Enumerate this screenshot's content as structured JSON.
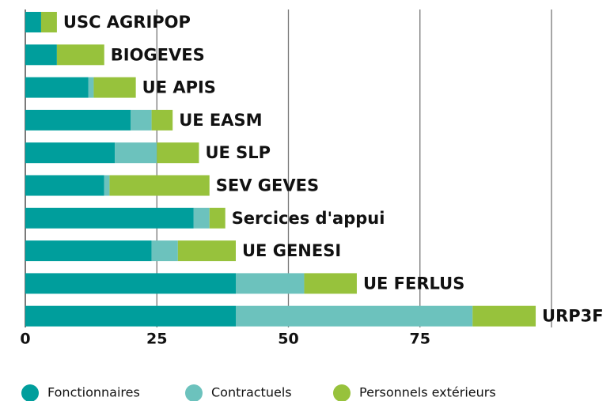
{
  "chart_data": {
    "type": "stacked_barh",
    "categories": [
      "USC AGRIPOP",
      "BIOGEVES",
      "UE APIS",
      "UE EASM",
      "UE SLP",
      "SEV GEVES",
      "Sercices d'appui",
      "UE GENESI",
      "UE FERLUS",
      "URP3F"
    ],
    "series": [
      {
        "name": "Fonctionnaires",
        "color": "#009e9c",
        "values": [
          3,
          6,
          12,
          20,
          17,
          15,
          32,
          24,
          40,
          40
        ]
      },
      {
        "name": "Contractuels",
        "color": "#6cc2bd",
        "values": [
          0,
          0,
          1,
          4,
          8,
          1,
          3,
          5,
          13,
          45
        ]
      },
      {
        "name": "Personnels extérieurs",
        "color": "#97c23c",
        "values": [
          3,
          9,
          8,
          4,
          8,
          19,
          3,
          11,
          10,
          12
        ]
      }
    ],
    "xlim": [
      0,
      100
    ],
    "xticks": [
      0,
      25,
      50,
      75
    ],
    "grid": true
  }
}
